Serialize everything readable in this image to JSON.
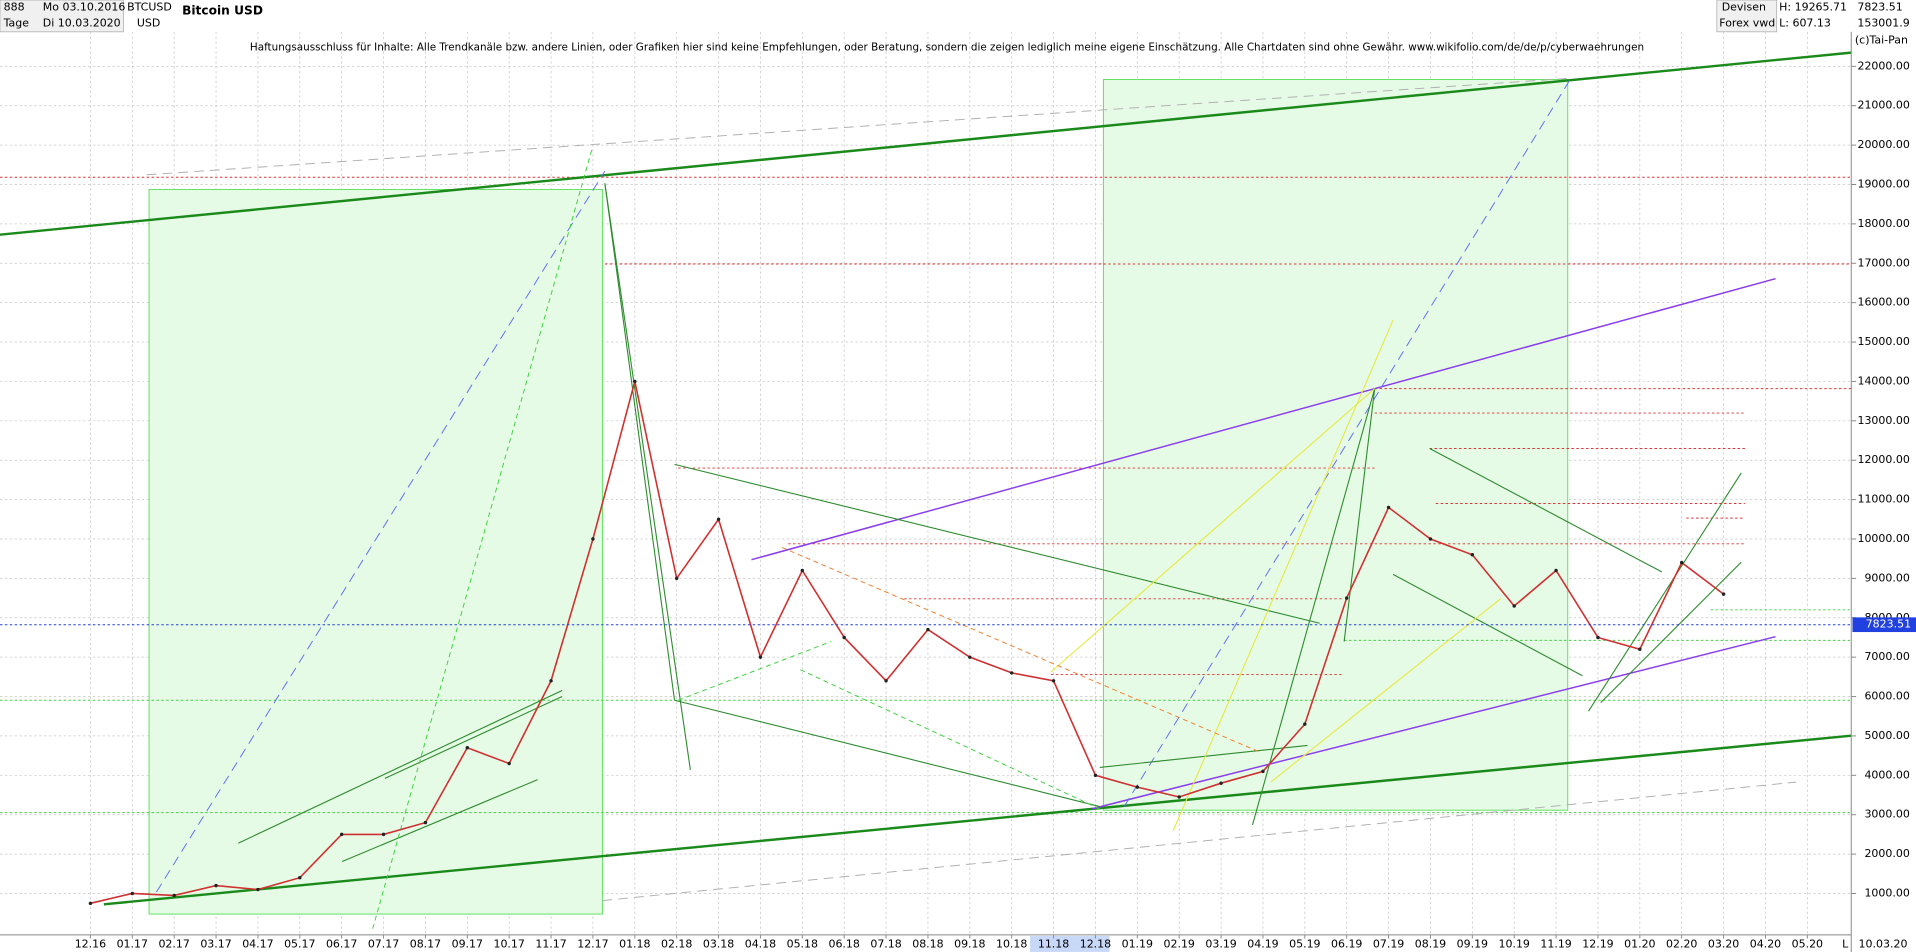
{
  "header": {
    "id": "888",
    "period": "Tage",
    "from": "Mo 03.10.2016",
    "to": "Di 10.03.2020",
    "symbol": "BTCUSD",
    "currency": "USD",
    "market": "Devisen",
    "source": "Forex vwd",
    "high": "H: 19265.71",
    "low": "L: 607.13",
    "volume": "153001.9",
    "copyright": "(c)Tai-Pan"
  },
  "chart_data": {
    "type": "line",
    "title": "Bitcoin USD",
    "annotation": "Haftungsausschluss für Inhalte: Alle Trendkanäle bzw. andere Linien, oder Grafiken hier sind keine Empfehlungen, oder Beratung, sondern die zeigen lediglich meine eigene Einschätzung. Alle Chartdaten sind ohne Gewähr.  www.wikifolio.com/de/de/p/cyberwaehrungen",
    "categories": [
      "12.16",
      "01.17",
      "02.17",
      "03.17",
      "04.17",
      "05.17",
      "06.17",
      "07.17",
      "08.17",
      "09.17",
      "10.17",
      "11.17",
      "12.17",
      "01.18",
      "02.18",
      "03.18",
      "04.18",
      "05.18",
      "06.18",
      "07.18",
      "08.18",
      "09.18",
      "10.18",
      "11.18",
      "12.18",
      "01.19",
      "02.19",
      "03.19",
      "04.19",
      "05.19",
      "06.19",
      "07.19",
      "08.19",
      "09.19",
      "10.19",
      "11.19",
      "12.19",
      "01.20",
      "02.20",
      "03.20",
      "04.20",
      "05.20"
    ],
    "values": [
      750,
      1000,
      950,
      1200,
      1100,
      1400,
      2500,
      2500,
      2800,
      4700,
      4300,
      6400,
      10000,
      14000,
      9000,
      10500,
      7000,
      9200,
      7500,
      6400,
      7700,
      7000,
      6600,
      6400,
      4000,
      3700,
      3450,
      3800,
      4100,
      5300,
      8500,
      10800,
      10000,
      9600,
      8300,
      9200,
      7500,
      7200,
      9400,
      8600,
      null,
      null
    ],
    "color": "#d03030",
    "last_value": 7823.51,
    "last_date": "10.03.20",
    "axis_mode": "L",
    "ylim": [
      -50,
      23000
    ],
    "yticks": [
      {
        "value": 1000,
        "label": "1000.00"
      },
      {
        "value": 2000,
        "label": "2000.00"
      },
      {
        "value": 3000,
        "label": "3000.00"
      },
      {
        "value": 4000,
        "label": "4000.00"
      },
      {
        "value": 5000,
        "label": "5000.00"
      },
      {
        "value": 6000,
        "label": "6000.00"
      },
      {
        "value": 7000,
        "label": "7000.00"
      },
      {
        "value": 8000,
        "label": "8000.00"
      },
      {
        "value": 9000,
        "label": "9000.00"
      },
      {
        "value": 10000,
        "label": "10000.00"
      },
      {
        "value": 11000,
        "label": "11000.00"
      },
      {
        "value": 12000,
        "label": "12000.00"
      },
      {
        "value": 13000,
        "label": "13000.00"
      },
      {
        "value": 14000,
        "label": "14000.00"
      },
      {
        "value": 15000,
        "label": "15000.00"
      },
      {
        "value": 16000,
        "label": "16000.00"
      },
      {
        "value": 17000,
        "label": "17000.00"
      },
      {
        "value": 18000,
        "label": "18000.00"
      },
      {
        "value": 19000,
        "label": "19000.00"
      },
      {
        "value": 20000,
        "label": "20000.00"
      },
      {
        "value": 21000,
        "label": "21000.00"
      },
      {
        "value": 22000,
        "label": "22000.00"
      }
    ],
    "grid": true
  }
}
